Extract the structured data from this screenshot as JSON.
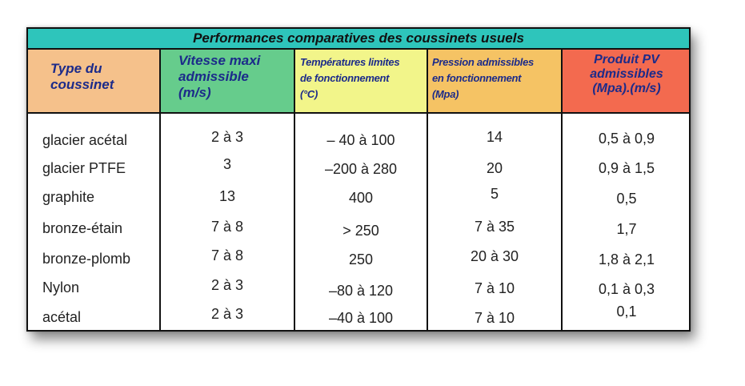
{
  "table": {
    "title": "Performances comparatives des coussinets usuels",
    "headers": {
      "type": [
        "Type du",
        "coussinet"
      ],
      "vitesse": [
        "Vitesse maxi",
        "admissible",
        "(m/s)"
      ],
      "temperature": [
        "Températures limites",
        "de fonctionnement",
        "(°C)"
      ],
      "pression": [
        "Pression admissibles",
        "en fonctionnement",
        "(Mpa)"
      ],
      "pv": [
        "Produit PV",
        "admissibles",
        "(Mpa).(m/s)"
      ]
    },
    "rows": [
      {
        "type": "glacier acétal",
        "vitesse": "2 à 3",
        "temperature": "– 40 à 100",
        "pression": "14",
        "pv": "0,5 à 0,9"
      },
      {
        "type": "glacier PTFE",
        "vitesse": "3",
        "temperature": "–200 à 280",
        "pression": "20",
        "pv": "0,9 à 1,5"
      },
      {
        "type": "graphite",
        "vitesse": "13",
        "temperature": "400",
        "pression": "5",
        "pv": "0,5"
      },
      {
        "type": "bronze-étain",
        "vitesse": "7 à 8",
        "temperature": "> 250",
        "pression": "7 à 35",
        "pv": "1,7"
      },
      {
        "type": "bronze-plomb",
        "vitesse": "7 à 8",
        "temperature": "250",
        "pression": "20 à 30",
        "pv": "1,8 à 2,1"
      },
      {
        "type": "Nylon",
        "vitesse": "2 à 3",
        "temperature": "–80 à 120",
        "pression": "7 à 10",
        "pv": "0,1 à 0,3"
      },
      {
        "type": "acétal",
        "vitesse": "2 à 3",
        "temperature": "–40 à 100",
        "pression": "7 à 10",
        "pv": "0,1"
      }
    ]
  }
}
